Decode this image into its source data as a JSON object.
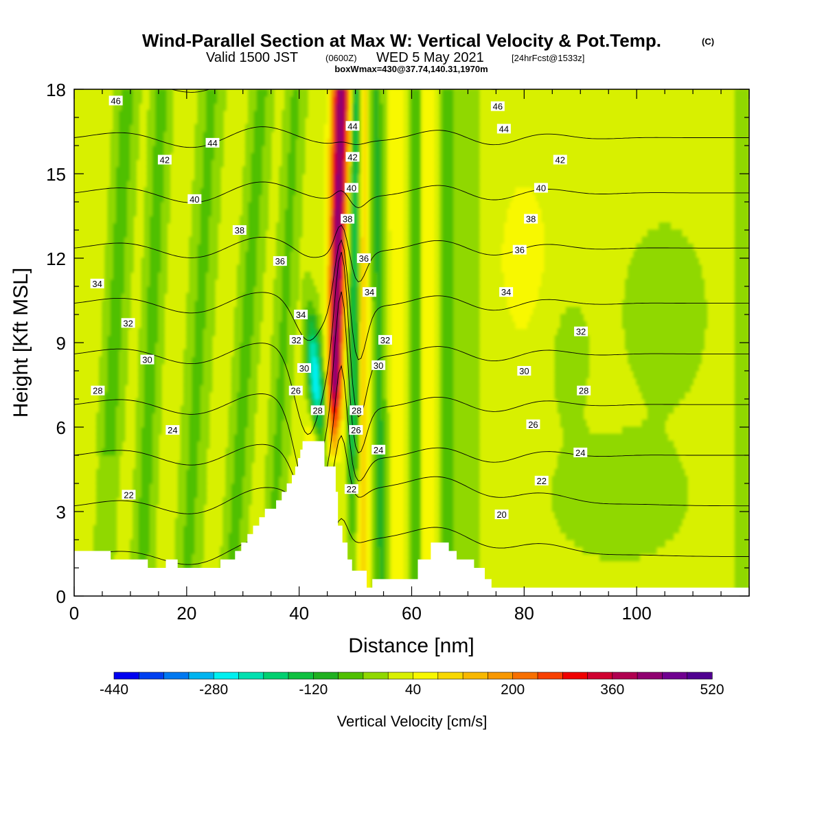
{
  "header": {
    "title": "Wind-Parallel Section at Max W: Vertical Velocity & Pot.Temp.",
    "copyright": "(C)",
    "valid_a": "Valid 1500 JST",
    "valid_b": "(0600Z)",
    "valid_c": "WED 5 May 2021",
    "valid_d": "[24hrFcst@1533z]",
    "boxinfo": "boxWmax=430@37.74,140.31,1970m"
  },
  "chart_data": {
    "type": "heatmap",
    "title": "Wind-Parallel Section at Max W: Vertical Velocity & Pot.Temp.",
    "xlabel": "Distance [nm]",
    "ylabel": "Height [Kft MSL]",
    "xlim": [
      0,
      120
    ],
    "ylim": [
      0,
      18
    ],
    "x_ticks": [
      "0",
      "20",
      "40",
      "60",
      "80",
      "100"
    ],
    "y_ticks": [
      "0",
      "3",
      "6",
      "9",
      "12",
      "15",
      "18"
    ],
    "colorbar": {
      "label": "Vertical Velocity [cm/s]",
      "min": -440,
      "max": 520,
      "step": 40,
      "tick_labels": [
        "-440",
        "-280",
        "-120",
        "40",
        "200",
        "360",
        "520"
      ],
      "colors": [
        "#0000f0",
        "#0040f0",
        "#0078f0",
        "#00b4f0",
        "#00f0f0",
        "#00e0b0",
        "#00d070",
        "#10c040",
        "#20b020",
        "#50c000",
        "#90d800",
        "#d8f000",
        "#f8f800",
        "#f8d800",
        "#f8b800",
        "#f89800",
        "#f87000",
        "#f84000",
        "#f00000",
        "#d00030",
        "#b00050",
        "#900070",
        "#700090",
        "#500090"
      ]
    },
    "theta_contours": {
      "name": "Pot.Temp.",
      "levels": [
        20,
        22,
        24,
        26,
        28,
        30,
        32,
        34,
        36,
        38,
        40,
        42,
        44,
        46
      ],
      "labels": [
        {
          "text": "46",
          "x": 7.4,
          "y": 17.6
        },
        {
          "text": "44",
          "x": 24.6,
          "y": 16.1
        },
        {
          "text": "42",
          "x": 16.1,
          "y": 15.5
        },
        {
          "text": "40",
          "x": 21.4,
          "y": 14.1
        },
        {
          "text": "38",
          "x": 29.4,
          "y": 13.0
        },
        {
          "text": "36",
          "x": 36.6,
          "y": 11.9
        },
        {
          "text": "34",
          "x": 4.1,
          "y": 11.1
        },
        {
          "text": "34",
          "x": 40.3,
          "y": 10.0
        },
        {
          "text": "32",
          "x": 9.6,
          "y": 9.7
        },
        {
          "text": "32",
          "x": 39.5,
          "y": 9.1
        },
        {
          "text": "30",
          "x": 13.0,
          "y": 8.4
        },
        {
          "text": "30",
          "x": 40.9,
          "y": 8.1
        },
        {
          "text": "28",
          "x": 4.2,
          "y": 7.3
        },
        {
          "text": "26",
          "x": 39.4,
          "y": 7.3
        },
        {
          "text": "28",
          "x": 43.3,
          "y": 6.6
        },
        {
          "text": "24",
          "x": 17.5,
          "y": 5.9
        },
        {
          "text": "22",
          "x": 9.7,
          "y": 3.6
        },
        {
          "text": "44",
          "x": 49.5,
          "y": 16.7
        },
        {
          "text": "42",
          "x": 49.5,
          "y": 15.6
        },
        {
          "text": "40",
          "x": 49.3,
          "y": 14.5
        },
        {
          "text": "38",
          "x": 48.6,
          "y": 13.4
        },
        {
          "text": "36",
          "x": 51.5,
          "y": 12.0
        },
        {
          "text": "34",
          "x": 52.5,
          "y": 10.8
        },
        {
          "text": "32",
          "x": 55.3,
          "y": 9.1
        },
        {
          "text": "30",
          "x": 54.1,
          "y": 8.2
        },
        {
          "text": "28",
          "x": 50.2,
          "y": 6.6
        },
        {
          "text": "26",
          "x": 50.1,
          "y": 5.9
        },
        {
          "text": "24",
          "x": 54.1,
          "y": 5.2
        },
        {
          "text": "22",
          "x": 49.3,
          "y": 3.8
        },
        {
          "text": "46",
          "x": 75.3,
          "y": 17.4
        },
        {
          "text": "44",
          "x": 76.4,
          "y": 16.6
        },
        {
          "text": "42",
          "x": 86.4,
          "y": 15.5
        },
        {
          "text": "40",
          "x": 83.0,
          "y": 14.5
        },
        {
          "text": "38",
          "x": 81.2,
          "y": 13.4
        },
        {
          "text": "36",
          "x": 79.2,
          "y": 12.3
        },
        {
          "text": "34",
          "x": 76.8,
          "y": 10.8
        },
        {
          "text": "32",
          "x": 90.1,
          "y": 9.4
        },
        {
          "text": "30",
          "x": 80.0,
          "y": 8.0
        },
        {
          "text": "28",
          "x": 90.6,
          "y": 7.3
        },
        {
          "text": "26",
          "x": 81.6,
          "y": 6.1
        },
        {
          "text": "24",
          "x": 90.0,
          "y": 5.1
        },
        {
          "text": "22",
          "x": 83.1,
          "y": 4.1
        },
        {
          "text": "20",
          "x": 76.0,
          "y": 2.9
        }
      ]
    },
    "terrain": [
      [
        0,
        1.6
      ],
      [
        6.5,
        1.6
      ],
      [
        6.5,
        1.3
      ],
      [
        13.1,
        1.3
      ],
      [
        13.1,
        1.0
      ],
      [
        16.3,
        1.0
      ],
      [
        16.3,
        1.3
      ],
      [
        18.4,
        1.3
      ],
      [
        18.4,
        1.0
      ],
      [
        26.0,
        1.0
      ],
      [
        26.0,
        1.3
      ],
      [
        28.6,
        1.3
      ],
      [
        28.6,
        1.6
      ],
      [
        29.7,
        1.6
      ],
      [
        29.7,
        1.9
      ],
      [
        30.8,
        1.9
      ],
      [
        30.8,
        2.2
      ],
      [
        31.8,
        2.2
      ],
      [
        31.8,
        2.5
      ],
      [
        32.9,
        2.5
      ],
      [
        32.9,
        2.8
      ],
      [
        33.9,
        2.8
      ],
      [
        33.9,
        3.1
      ],
      [
        35.9,
        3.1
      ],
      [
        35.9,
        3.4
      ],
      [
        36.9,
        3.4
      ],
      [
        36.9,
        3.7
      ],
      [
        37.8,
        3.7
      ],
      [
        37.8,
        4.0
      ],
      [
        38.7,
        4.0
      ],
      [
        38.7,
        4.3
      ],
      [
        39.3,
        4.3
      ],
      [
        39.3,
        4.6
      ],
      [
        39.8,
        4.6
      ],
      [
        39.8,
        4.9
      ],
      [
        40.2,
        4.9
      ],
      [
        40.2,
        5.2
      ],
      [
        40.6,
        5.2
      ],
      [
        40.6,
        5.5
      ],
      [
        44.5,
        5.5
      ],
      [
        44.5,
        4.6
      ],
      [
        46.5,
        4.6
      ],
      [
        46.5,
        3.7
      ],
      [
        46.9,
        3.7
      ],
      [
        46.9,
        2.5
      ],
      [
        47.7,
        2.5
      ],
      [
        47.7,
        1.9
      ],
      [
        48.6,
        1.9
      ],
      [
        48.6,
        1.3
      ],
      [
        49.4,
        1.3
      ],
      [
        49.4,
        0.9
      ],
      [
        52.0,
        0.9
      ],
      [
        52.0,
        0.3
      ],
      [
        53.0,
        0.3
      ],
      [
        53.0,
        0.6
      ],
      [
        61.1,
        0.6
      ],
      [
        61.1,
        1.3
      ],
      [
        63.4,
        1.3
      ],
      [
        63.4,
        1.9
      ],
      [
        66.6,
        1.9
      ],
      [
        66.6,
        1.6
      ],
      [
        68.0,
        1.6
      ],
      [
        68.0,
        1.3
      ],
      [
        71.1,
        1.3
      ],
      [
        71.1,
        1.0
      ],
      [
        73.0,
        1.0
      ],
      [
        73.0,
        0.6
      ],
      [
        74.2,
        0.6
      ],
      [
        74.2,
        0.3
      ],
      [
        120,
        0.3
      ]
    ]
  }
}
